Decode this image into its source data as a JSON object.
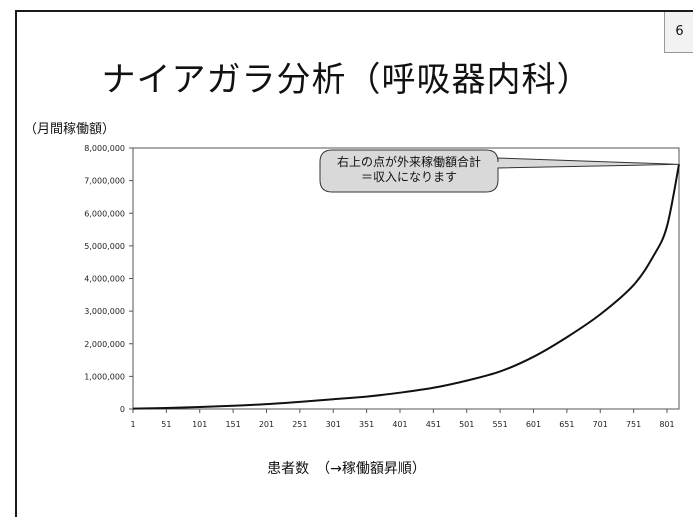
{
  "slide": {
    "page_number": "6",
    "title": "ナイアガラ分析（呼吸器内科）"
  },
  "chart_data": {
    "type": "line",
    "ylabel": "（月間稼働額）",
    "xlabel": "患者数　（→稼働額昇順）",
    "yticks": [
      "0",
      "1,000,000",
      "2,000,000",
      "3,000,000",
      "4,000,000",
      "5,000,000",
      "6,000,000",
      "7,000,000",
      "8,000,000"
    ],
    "xticks": [
      "1",
      "51",
      "101",
      "151",
      "201",
      "251",
      "301",
      "351",
      "401",
      "451",
      "501",
      "551",
      "601",
      "651",
      "701",
      "751",
      "801"
    ],
    "ylim": [
      0,
      8000000
    ],
    "xlim": [
      1,
      819
    ],
    "grid": false,
    "x": [
      1,
      51,
      101,
      151,
      201,
      251,
      301,
      351,
      401,
      451,
      501,
      551,
      601,
      651,
      701,
      751,
      781,
      801,
      819
    ],
    "values": [
      10000,
      30000,
      60000,
      100000,
      150000,
      220000,
      300000,
      380000,
      500000,
      650000,
      870000,
      1150000,
      1600000,
      2200000,
      2900000,
      3800000,
      4700000,
      5600000,
      7500000
    ],
    "annotation": {
      "lines": [
        "右上の点が外来稼働額合計",
        "＝収入になります"
      ]
    }
  },
  "colors": {
    "line": "#111111",
    "plot_border": "#555555",
    "callout_fill": "#d9d9d9",
    "callout_stroke": "#333333"
  }
}
